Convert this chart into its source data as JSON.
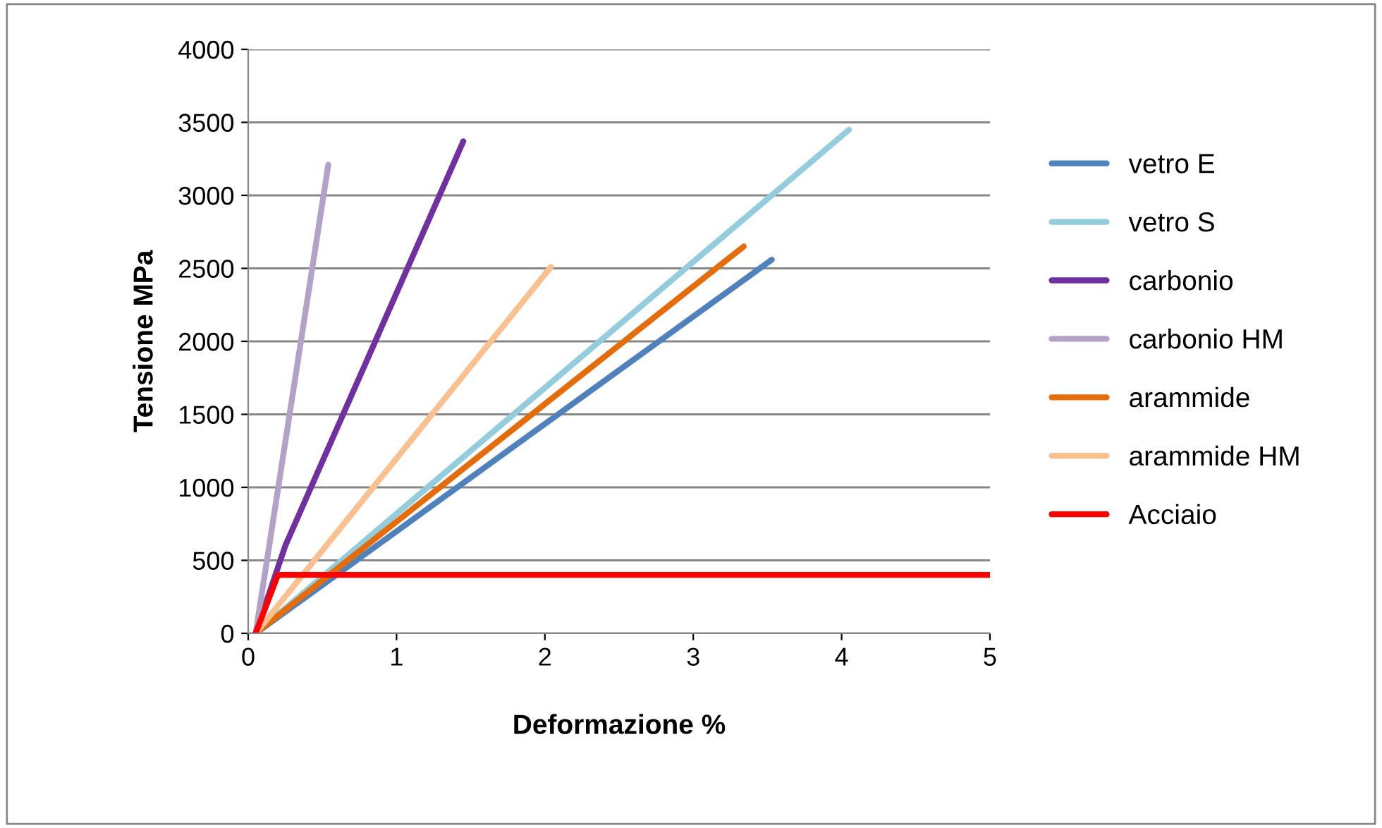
{
  "chart_data": {
    "type": "line",
    "xlabel": "Deformazione %",
    "ylabel": "Tensione MPa",
    "xlim": [
      0,
      5
    ],
    "xticks": [
      0,
      1,
      2,
      3,
      4,
      5
    ],
    "ylim": [
      0,
      4000
    ],
    "yticks": [
      0,
      500,
      1000,
      1500,
      2000,
      2500,
      3000,
      3500,
      4000
    ],
    "grid": "y",
    "legend": "right",
    "marker": "none",
    "line_style": "solid",
    "series": [
      {
        "name": "vetro E",
        "color": "#4f81bd",
        "x": [
          0.05,
          3.53
        ],
        "values": [
          0,
          2560
        ]
      },
      {
        "name": "vetro S",
        "color": "#93cddd",
        "x": [
          0.05,
          4.05
        ],
        "values": [
          0,
          3450
        ]
      },
      {
        "name": "carbonio",
        "color": "#7030a0",
        "x": [
          0.05,
          0.25,
          1.45
        ],
        "values": [
          0,
          600,
          3370
        ]
      },
      {
        "name": "carbonio HM",
        "color": "#b3a2c7",
        "x": [
          0.05,
          0.54
        ],
        "values": [
          0,
          3210
        ]
      },
      {
        "name": "arammide",
        "color": "#e46c0a",
        "x": [
          0.05,
          3.34
        ],
        "values": [
          0,
          2650
        ]
      },
      {
        "name": "arammide HM",
        "color": "#fac090",
        "x": [
          0.05,
          2.04
        ],
        "values": [
          0,
          2510
        ]
      },
      {
        "name": "Acciaio",
        "color": "#ff0000",
        "x": [
          0.05,
          0.2,
          5
        ],
        "values": [
          0,
          400,
          400
        ]
      }
    ]
  }
}
